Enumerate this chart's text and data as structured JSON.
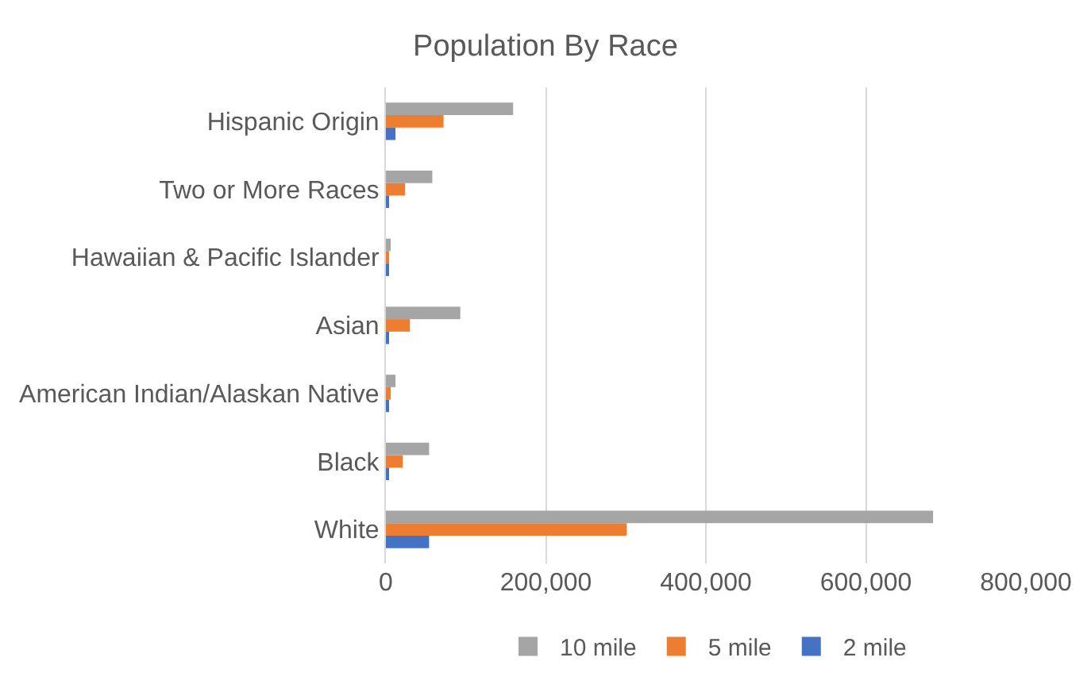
{
  "chart_data": {
    "type": "bar",
    "title": "Population By Race",
    "orientation": "horizontal",
    "categories": [
      "Hispanic Origin",
      "Two or More Races",
      "Hawaiian & Pacific Islander",
      "Asian",
      "American Indian/Alaskan Native",
      "Black",
      "White"
    ],
    "series": [
      {
        "name": "10 mile",
        "color": "#a5a5a5",
        "values": [
          159000,
          58000,
          6000,
          93000,
          12000,
          54000,
          684000
        ]
      },
      {
        "name": "5 mile",
        "color": "#ed7d31",
        "values": [
          72000,
          24000,
          3000,
          30000,
          6000,
          21000,
          301000
        ]
      },
      {
        "name": "2 mile",
        "color": "#4472c4",
        "values": [
          12000,
          3000,
          3000,
          3000,
          3000,
          3000,
          54000
        ]
      }
    ],
    "xlim": [
      0,
      800000
    ],
    "xticks": [
      {
        "value": 0,
        "label": "0"
      },
      {
        "value": 200000,
        "label": "200,000"
      },
      {
        "value": 400000,
        "label": "400,000"
      },
      {
        "value": 600000,
        "label": "600,000"
      },
      {
        "value": 800000,
        "label": "800,000"
      }
    ],
    "grid": "x",
    "legend": "bottom"
  }
}
